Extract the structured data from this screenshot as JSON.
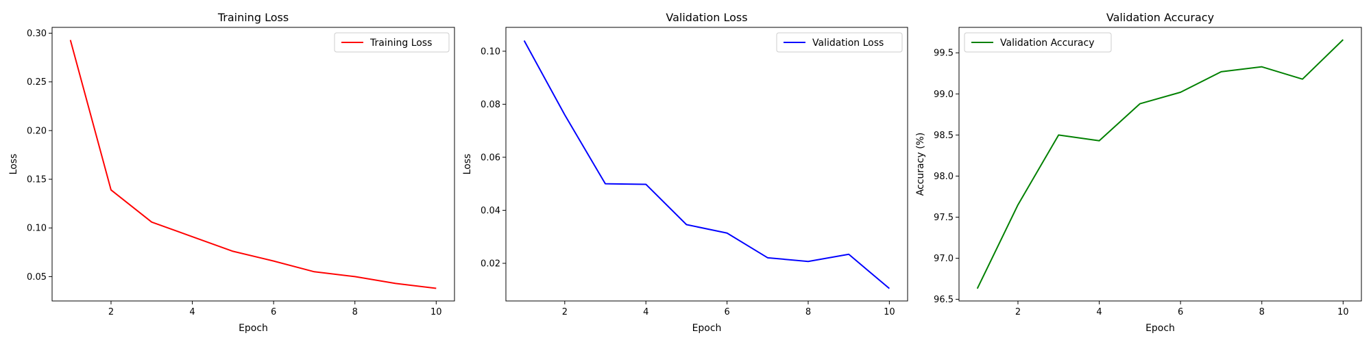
{
  "chart_data": [
    {
      "type": "line",
      "title": "Training Loss",
      "xlabel": "Epoch",
      "ylabel": "Loss",
      "xlim": [
        0.55,
        10.45
      ],
      "ylim": [
        0.025,
        0.306
      ],
      "xticks": [
        2,
        4,
        6,
        8,
        10
      ],
      "yticks": [
        0.05,
        0.1,
        0.15,
        0.2,
        0.25,
        0.3
      ],
      "yticks_labels": [
        "0.05",
        "0.10",
        "0.15",
        "0.20",
        "0.25",
        "0.30"
      ],
      "xticks_labels": [
        "2",
        "4",
        "6",
        "8",
        "10"
      ],
      "grid": false,
      "legend": "top-right",
      "series": [
        {
          "name": "Training Loss",
          "color": "#ff0000",
          "x": [
            1,
            2,
            3,
            4,
            5,
            6,
            7,
            8,
            9,
            10
          ],
          "y": [
            0.293,
            0.139,
            0.106,
            0.091,
            0.076,
            0.066,
            0.055,
            0.05,
            0.043,
            0.038
          ]
        }
      ]
    },
    {
      "type": "line",
      "title": "Validation Loss",
      "xlabel": "Epoch",
      "ylabel": "Loss",
      "xlim": [
        0.55,
        10.45
      ],
      "ylim": [
        0.0058,
        0.109
      ],
      "xticks": [
        2,
        4,
        6,
        8,
        10
      ],
      "yticks": [
        0.02,
        0.04,
        0.06,
        0.08,
        0.1
      ],
      "yticks_labels": [
        "0.02",
        "0.04",
        "0.06",
        "0.08",
        "0.10"
      ],
      "xticks_labels": [
        "2",
        "4",
        "6",
        "8",
        "10"
      ],
      "grid": false,
      "legend": "top-right",
      "series": [
        {
          "name": "Validation Loss",
          "color": "#0000ff",
          "x": [
            1,
            2,
            3,
            4,
            5,
            6,
            7,
            8,
            9,
            10
          ],
          "y": [
            0.104,
            0.076,
            0.05,
            0.0498,
            0.0346,
            0.0314,
            0.0221,
            0.0207,
            0.0234,
            0.0105
          ]
        }
      ]
    },
    {
      "type": "line",
      "title": "Validation Accuracy",
      "xlabel": "Epoch",
      "ylabel": "Accuracy (%)",
      "xlim": [
        0.55,
        10.45
      ],
      "ylim": [
        96.48,
        99.81
      ],
      "xticks": [
        2,
        4,
        6,
        8,
        10
      ],
      "yticks": [
        96.5,
        97.0,
        97.5,
        98.0,
        98.5,
        99.0,
        99.5
      ],
      "yticks_labels": [
        "96.5",
        "97.0",
        "97.5",
        "98.0",
        "98.5",
        "99.0",
        "99.5"
      ],
      "xticks_labels": [
        "2",
        "4",
        "6",
        "8",
        "10"
      ],
      "grid": false,
      "legend": "top-left",
      "series": [
        {
          "name": "Validation Accuracy",
          "color": "#008000",
          "x": [
            1,
            2,
            3,
            4,
            5,
            6,
            7,
            8,
            9,
            10
          ],
          "y": [
            96.63,
            97.65,
            98.5,
            98.43,
            98.88,
            99.02,
            99.27,
            99.33,
            99.18,
            99.66
          ]
        }
      ]
    }
  ]
}
